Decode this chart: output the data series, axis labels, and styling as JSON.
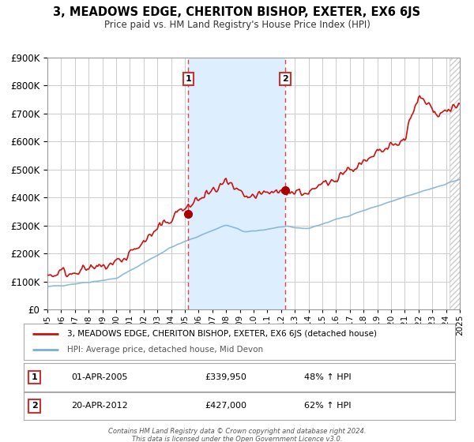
{
  "title": "3, MEADOWS EDGE, CHERITON BISHOP, EXETER, EX6 6JS",
  "subtitle": "Price paid vs. HM Land Registry's House Price Index (HPI)",
  "background_color": "#ffffff",
  "plot_bg_color": "#ffffff",
  "grid_color": "#cccccc",
  "hpi_color": "#7bafd4",
  "price_color": "#cc1111",
  "sale1_date": 2005.25,
  "sale1_price": 339950,
  "sale2_date": 2012.3,
  "sale2_price": 427000,
  "vline_color": "#dd4444",
  "shade_color": "#ddeeff",
  "marker_color": "#aa0000",
  "ylim_max": 900000,
  "xlim_min": 1995,
  "xlim_max": 2025,
  "legend_line1": "3, MEADOWS EDGE, CHERITON BISHOP, EXETER, EX6 6JS (detached house)",
  "legend_line2": "HPI: Average price, detached house, Mid Devon",
  "annotation1_date": "01-APR-2005",
  "annotation1_price": "£339,950",
  "annotation1_pct": "48% ↑ HPI",
  "annotation2_date": "20-APR-2012",
  "annotation2_price": "£427,000",
  "annotation2_pct": "62% ↑ HPI",
  "footer1": "Contains HM Land Registry data © Crown copyright and database right 2024.",
  "footer2": "This data is licensed under the Open Government Licence v3.0."
}
